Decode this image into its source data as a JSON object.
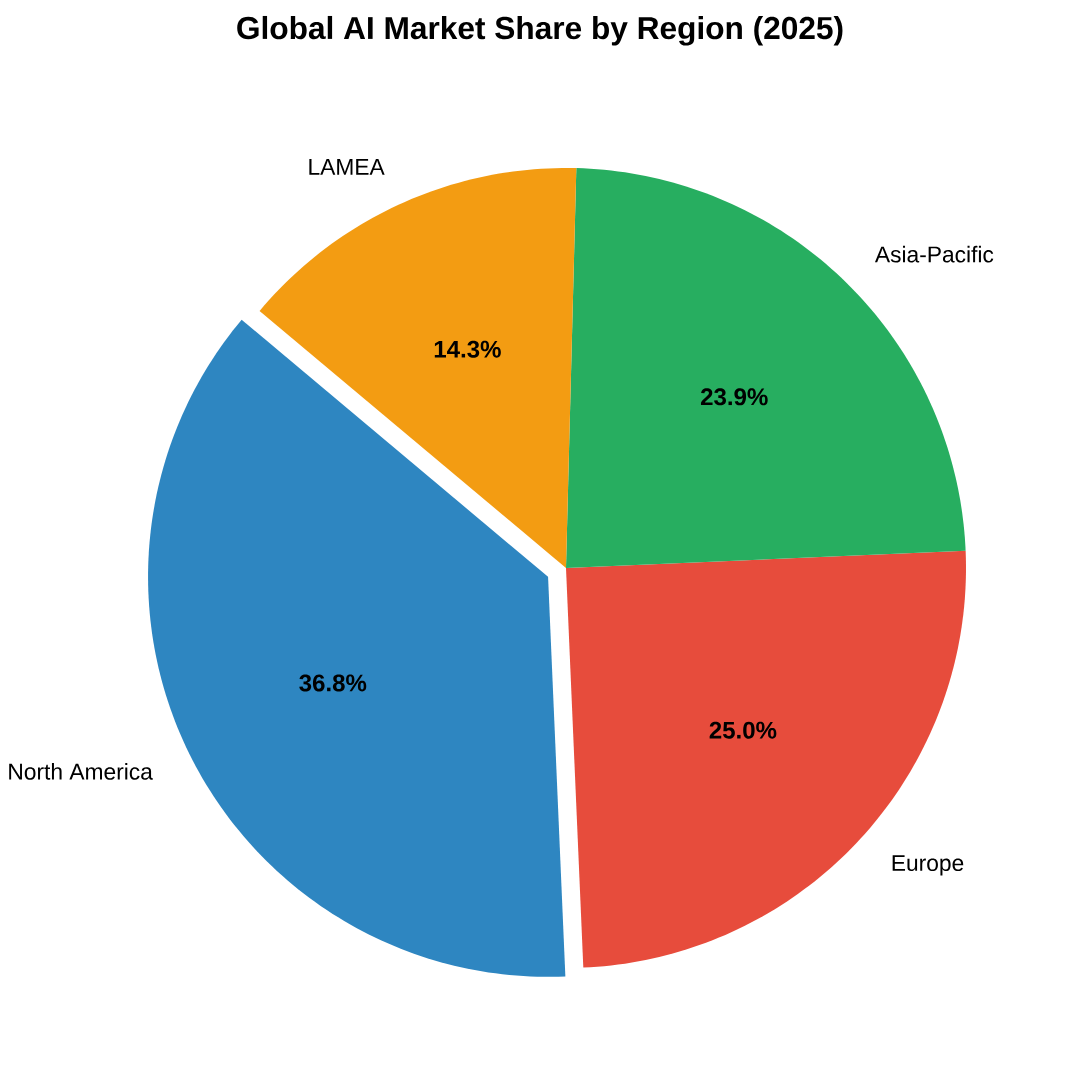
{
  "chart_data": {
    "type": "pie",
    "title": "Global AI Market Share by Region (2025)",
    "categories": [
      "North America",
      "Europe",
      "Asia-Pacific",
      "LAMEA"
    ],
    "values": [
      36.8,
      25.0,
      23.9,
      14.3
    ],
    "value_labels": [
      "36.8%",
      "25.0%",
      "23.9%",
      "14.3%"
    ],
    "colors": [
      "#2e86c1",
      "#e74c3c",
      "#27ae60",
      "#f39c12"
    ]
  }
}
